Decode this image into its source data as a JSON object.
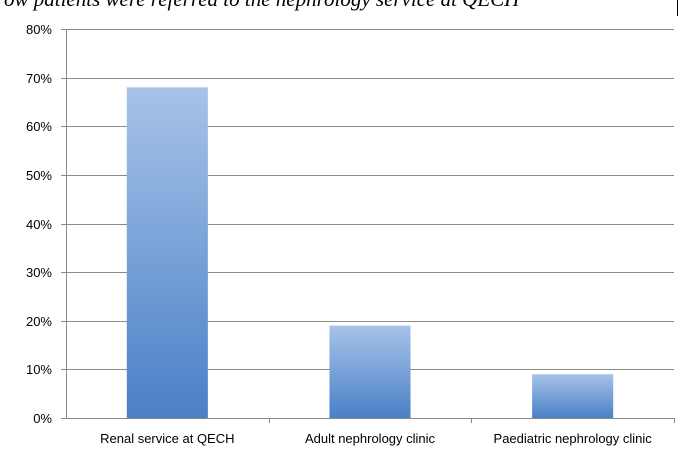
{
  "header": {
    "clipped_heading": "ow patients were referred to the nephrology service at QECH"
  },
  "chart_data": {
    "type": "bar",
    "title": "",
    "xlabel": "",
    "ylabel": "",
    "categories": [
      "Renal service at QECH",
      "Adult nephrology clinic",
      "Paediatric nephrology clinic"
    ],
    "values": [
      0.68,
      0.19,
      0.09
    ],
    "ylim": [
      0,
      0.8
    ],
    "y_ticks": [
      {
        "value": 0.0,
        "label": "0%"
      },
      {
        "value": 0.1,
        "label": "10%"
      },
      {
        "value": 0.2,
        "label": "20%"
      },
      {
        "value": 0.3,
        "label": "30%"
      },
      {
        "value": 0.4,
        "label": "40%"
      },
      {
        "value": 0.5,
        "label": "50%"
      },
      {
        "value": 0.6,
        "label": "60%"
      },
      {
        "value": 0.7,
        "label": "70%"
      },
      {
        "value": 0.8,
        "label": "80%"
      }
    ],
    "grid": true,
    "legend": "none",
    "colors": {
      "bar_top": "#a7c3e8",
      "bar_bottom": "#4a80c7",
      "grid": "#8a8a8a",
      "axis": "#8a8a8a"
    }
  }
}
